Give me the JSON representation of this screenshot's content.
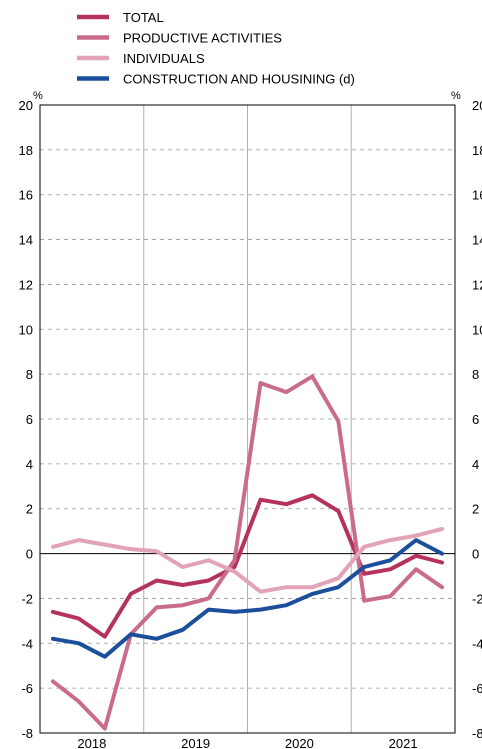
{
  "chart_data": {
    "type": "line",
    "y_unit_left": "%",
    "y_unit_right": "%",
    "ylim": [
      -8,
      20
    ],
    "yticks": [
      20,
      18,
      16,
      14,
      12,
      10,
      8,
      6,
      4,
      2,
      0,
      -2,
      -4,
      -6,
      -8
    ],
    "year_labels": [
      "2018",
      "2019",
      "2020",
      "2021"
    ],
    "grid": "horizontal dashed, vertical solid at year boundaries",
    "legend_placement": "top-left",
    "x": [
      "2018-Q1",
      "2018-Q2",
      "2018-Q3",
      "2018-Q4",
      "2019-Q1",
      "2019-Q2",
      "2019-Q3",
      "2019-Q4",
      "2020-Q1",
      "2020-Q2",
      "2020-Q3",
      "2020-Q4",
      "2021-Q1",
      "2021-Q2",
      "2021-Q3",
      "2021-Q4"
    ],
    "series": [
      {
        "name": "TOTAL",
        "color": "#b5325c",
        "values": [
          -2.6,
          -2.9,
          -3.7,
          -1.8,
          -1.2,
          -1.4,
          -1.2,
          -0.6,
          2.4,
          2.2,
          2.6,
          1.9,
          -0.9,
          -0.7,
          -0.1,
          -0.4
        ]
      },
      {
        "name": "PRODUCTIVE ACTIVITIES",
        "color": "#c96c8c",
        "values": [
          -5.7,
          -6.6,
          -7.8,
          -3.6,
          -2.4,
          -2.3,
          -2.0,
          -0.3,
          7.6,
          7.2,
          7.9,
          5.9,
          -2.1,
          -1.9,
          -0.7,
          -1.5
        ]
      },
      {
        "name": "INDIVIDUALS",
        "color": "#e2a3b9",
        "values": [
          0.3,
          0.6,
          0.4,
          0.2,
          0.1,
          -0.6,
          -0.3,
          -0.8,
          -1.7,
          -1.5,
          -1.5,
          -1.1,
          0.3,
          0.6,
          0.8,
          1.1
        ]
      },
      {
        "name": "CONSTRUCTION AND HOUSINING (d)",
        "color": "#1b4f9c",
        "values": [
          -3.8,
          -4.0,
          -4.6,
          -3.6,
          -3.8,
          -3.4,
          -2.5,
          -2.6,
          -2.5,
          -2.3,
          -1.8,
          -1.5,
          -0.6,
          -0.3,
          0.6,
          0.0
        ]
      }
    ]
  }
}
